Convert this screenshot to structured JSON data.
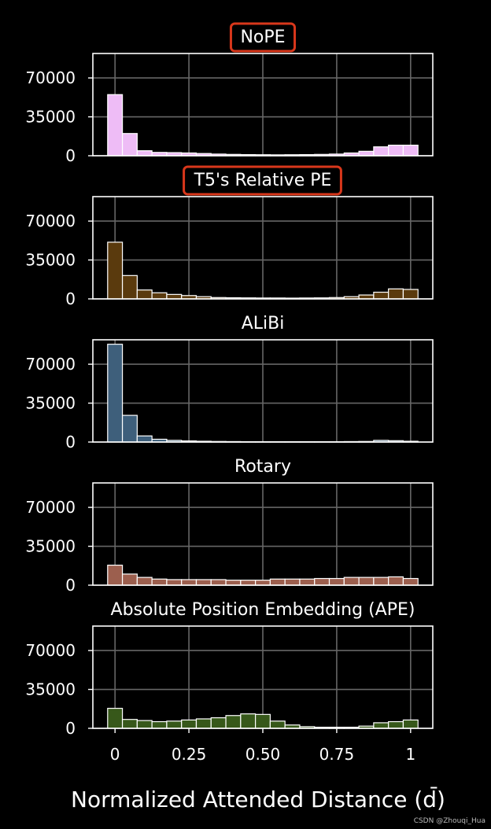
{
  "chart_data": {
    "type": "bar",
    "xlabel": "Normalized Attended Distance (d̄)",
    "x_ticks": [
      0,
      0.25,
      0.5,
      0.75,
      1
    ],
    "x_tick_labels": [
      "0",
      "0.25",
      "0.50",
      "0.75",
      "1"
    ],
    "xlim": [
      -0.075,
      1.075
    ],
    "ylim": [
      0,
      92000
    ],
    "y_ticks": [
      0,
      35000,
      70000
    ],
    "y_tick_labels": [
      "0",
      "35000",
      "70000"
    ],
    "grid": true,
    "bin_centers": [
      0,
      0.05,
      0.1,
      0.15,
      0.2,
      0.25,
      0.3,
      0.35,
      0.4,
      0.45,
      0.5,
      0.55,
      0.6,
      0.65,
      0.7,
      0.75,
      0.8,
      0.85,
      0.9,
      0.95,
      1.0
    ],
    "panels": [
      {
        "title": "NoPE",
        "highlighted": true,
        "color": "#eebcf6",
        "values": [
          55000,
          20000,
          4500,
          3000,
          2800,
          2500,
          2000,
          1500,
          1200,
          1000,
          900,
          800,
          900,
          1000,
          1200,
          1500,
          2500,
          4000,
          8000,
          9500,
          9500
        ]
      },
      {
        "title": "T5's Relative PE",
        "highlighted": true,
        "color": "#5a3a0d",
        "values": [
          51000,
          21000,
          8000,
          5500,
          4000,
          3000,
          2000,
          1200,
          1000,
          900,
          800,
          800,
          700,
          800,
          900,
          1200,
          2000,
          3500,
          6000,
          9000,
          8500
        ]
      },
      {
        "title": "ALiBi",
        "highlighted": false,
        "color": "#3e5f7b",
        "values": [
          88000,
          24000,
          5500,
          2500,
          1500,
          1000,
          700,
          500,
          400,
          300,
          300,
          300,
          300,
          300,
          300,
          300,
          400,
          500,
          1500,
          1200,
          700
        ]
      },
      {
        "title": "Rotary",
        "highlighted": false,
        "color": "#9c5f4e",
        "values": [
          18000,
          10000,
          7000,
          5500,
          5000,
          5000,
          5000,
          5000,
          4500,
          4500,
          4500,
          5500,
          5500,
          5500,
          6000,
          6000,
          7000,
          7000,
          7000,
          7500,
          6000
        ]
      },
      {
        "title": "Absolute Position Embedding (APE)",
        "highlighted": false,
        "color": "#37581a",
        "values": [
          18000,
          8000,
          7000,
          6000,
          6500,
          7500,
          8500,
          9500,
          11500,
          13000,
          12500,
          6500,
          3000,
          1500,
          1000,
          1000,
          1000,
          2000,
          5000,
          6000,
          7500
        ]
      }
    ]
  },
  "colors": {
    "background": "#000000",
    "grid": "#666666",
    "axes": "#ffffff",
    "bar_edge": "#ffffff",
    "highlight_box": "#d9371b"
  },
  "watermark": "CSDN @Zhouqi_Hua"
}
